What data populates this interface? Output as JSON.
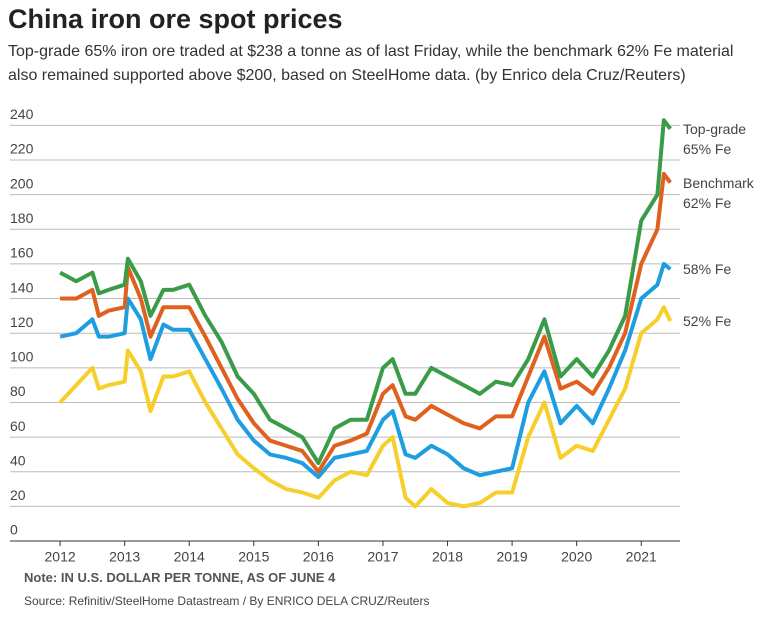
{
  "chart_data": {
    "type": "line",
    "title": "China iron ore spot prices",
    "subtitle": "Top-grade 65% iron ore traded at $238 a tonne as of last Friday, while the benchmark 62% Fe material also remained supported above $200, based on SteelHome data. (by Enrico dela Cruz/Reuters)",
    "note": "Note: IN U.S. DOLLAR PER TONNE, AS OF JUNE 4",
    "source": "Source: Refinitiv/SteelHome Datastream / By ENRICO DELA CRUZ/Reuters",
    "x": [
      2012.0,
      2012.25,
      2012.5,
      2012.6,
      2012.75,
      2013.0,
      2013.05,
      2013.25,
      2013.4,
      2013.6,
      2013.75,
      2014.0,
      2014.25,
      2014.5,
      2014.75,
      2015.0,
      2015.25,
      2015.5,
      2015.75,
      2016.0,
      2016.25,
      2016.5,
      2016.75,
      2017.0,
      2017.15,
      2017.35,
      2017.5,
      2017.75,
      2018.0,
      2018.25,
      2018.5,
      2018.75,
      2019.0,
      2019.25,
      2019.5,
      2019.75,
      2020.0,
      2020.25,
      2020.5,
      2020.75,
      2021.0,
      2021.25,
      2021.35,
      2021.45
    ],
    "series": [
      {
        "name": "52% Fe",
        "color": "#f6cf2c",
        "values": [
          80,
          90,
          100,
          88,
          90,
          92,
          110,
          98,
          75,
          95,
          95,
          98,
          80,
          65,
          50,
          42,
          35,
          30,
          28,
          25,
          35,
          40,
          38,
          55,
          60,
          25,
          20,
          30,
          22,
          20,
          22,
          28,
          28,
          60,
          80,
          48,
          55,
          52,
          70,
          88,
          120,
          128,
          135,
          127
        ]
      },
      {
        "name": "58% Fe",
        "color": "#1e9ee0",
        "values": [
          118,
          120,
          128,
          118,
          118,
          120,
          140,
          128,
          105,
          125,
          122,
          122,
          105,
          88,
          70,
          58,
          50,
          48,
          45,
          37,
          48,
          50,
          52,
          70,
          75,
          50,
          48,
          55,
          50,
          42,
          38,
          40,
          42,
          80,
          98,
          68,
          78,
          68,
          88,
          110,
          140,
          148,
          160,
          157
        ]
      },
      {
        "name": "Benchmark 62% Fe",
        "color": "#e0611f",
        "values": [
          140,
          140,
          145,
          130,
          133,
          135,
          158,
          140,
          118,
          135,
          135,
          135,
          118,
          100,
          82,
          68,
          58,
          55,
          52,
          40,
          55,
          58,
          62,
          85,
          90,
          72,
          70,
          78,
          73,
          68,
          65,
          72,
          72,
          95,
          118,
          88,
          92,
          85,
          100,
          120,
          160,
          180,
          212,
          207
        ]
      },
      {
        "name": "Top-grade 65% Fe",
        "color": "#3a9b48",
        "values": [
          155,
          150,
          155,
          143,
          145,
          148,
          163,
          150,
          130,
          145,
          145,
          148,
          130,
          115,
          95,
          85,
          70,
          65,
          60,
          45,
          65,
          70,
          70,
          100,
          105,
          85,
          85,
          100,
          95,
          90,
          85,
          92,
          90,
          105,
          128,
          95,
          105,
          95,
          110,
          130,
          185,
          200,
          243,
          238
        ]
      }
    ],
    "xlim": [
      2011.72,
      2021.6
    ],
    "xticks": [
      2012,
      2013,
      2014,
      2015,
      2016,
      2017,
      2018,
      2019,
      2020,
      2021
    ],
    "ylim": [
      0,
      246
    ],
    "yticks": [
      0,
      20,
      40,
      60,
      80,
      100,
      120,
      140,
      160,
      180,
      200,
      220,
      240
    ],
    "grid": true
  }
}
